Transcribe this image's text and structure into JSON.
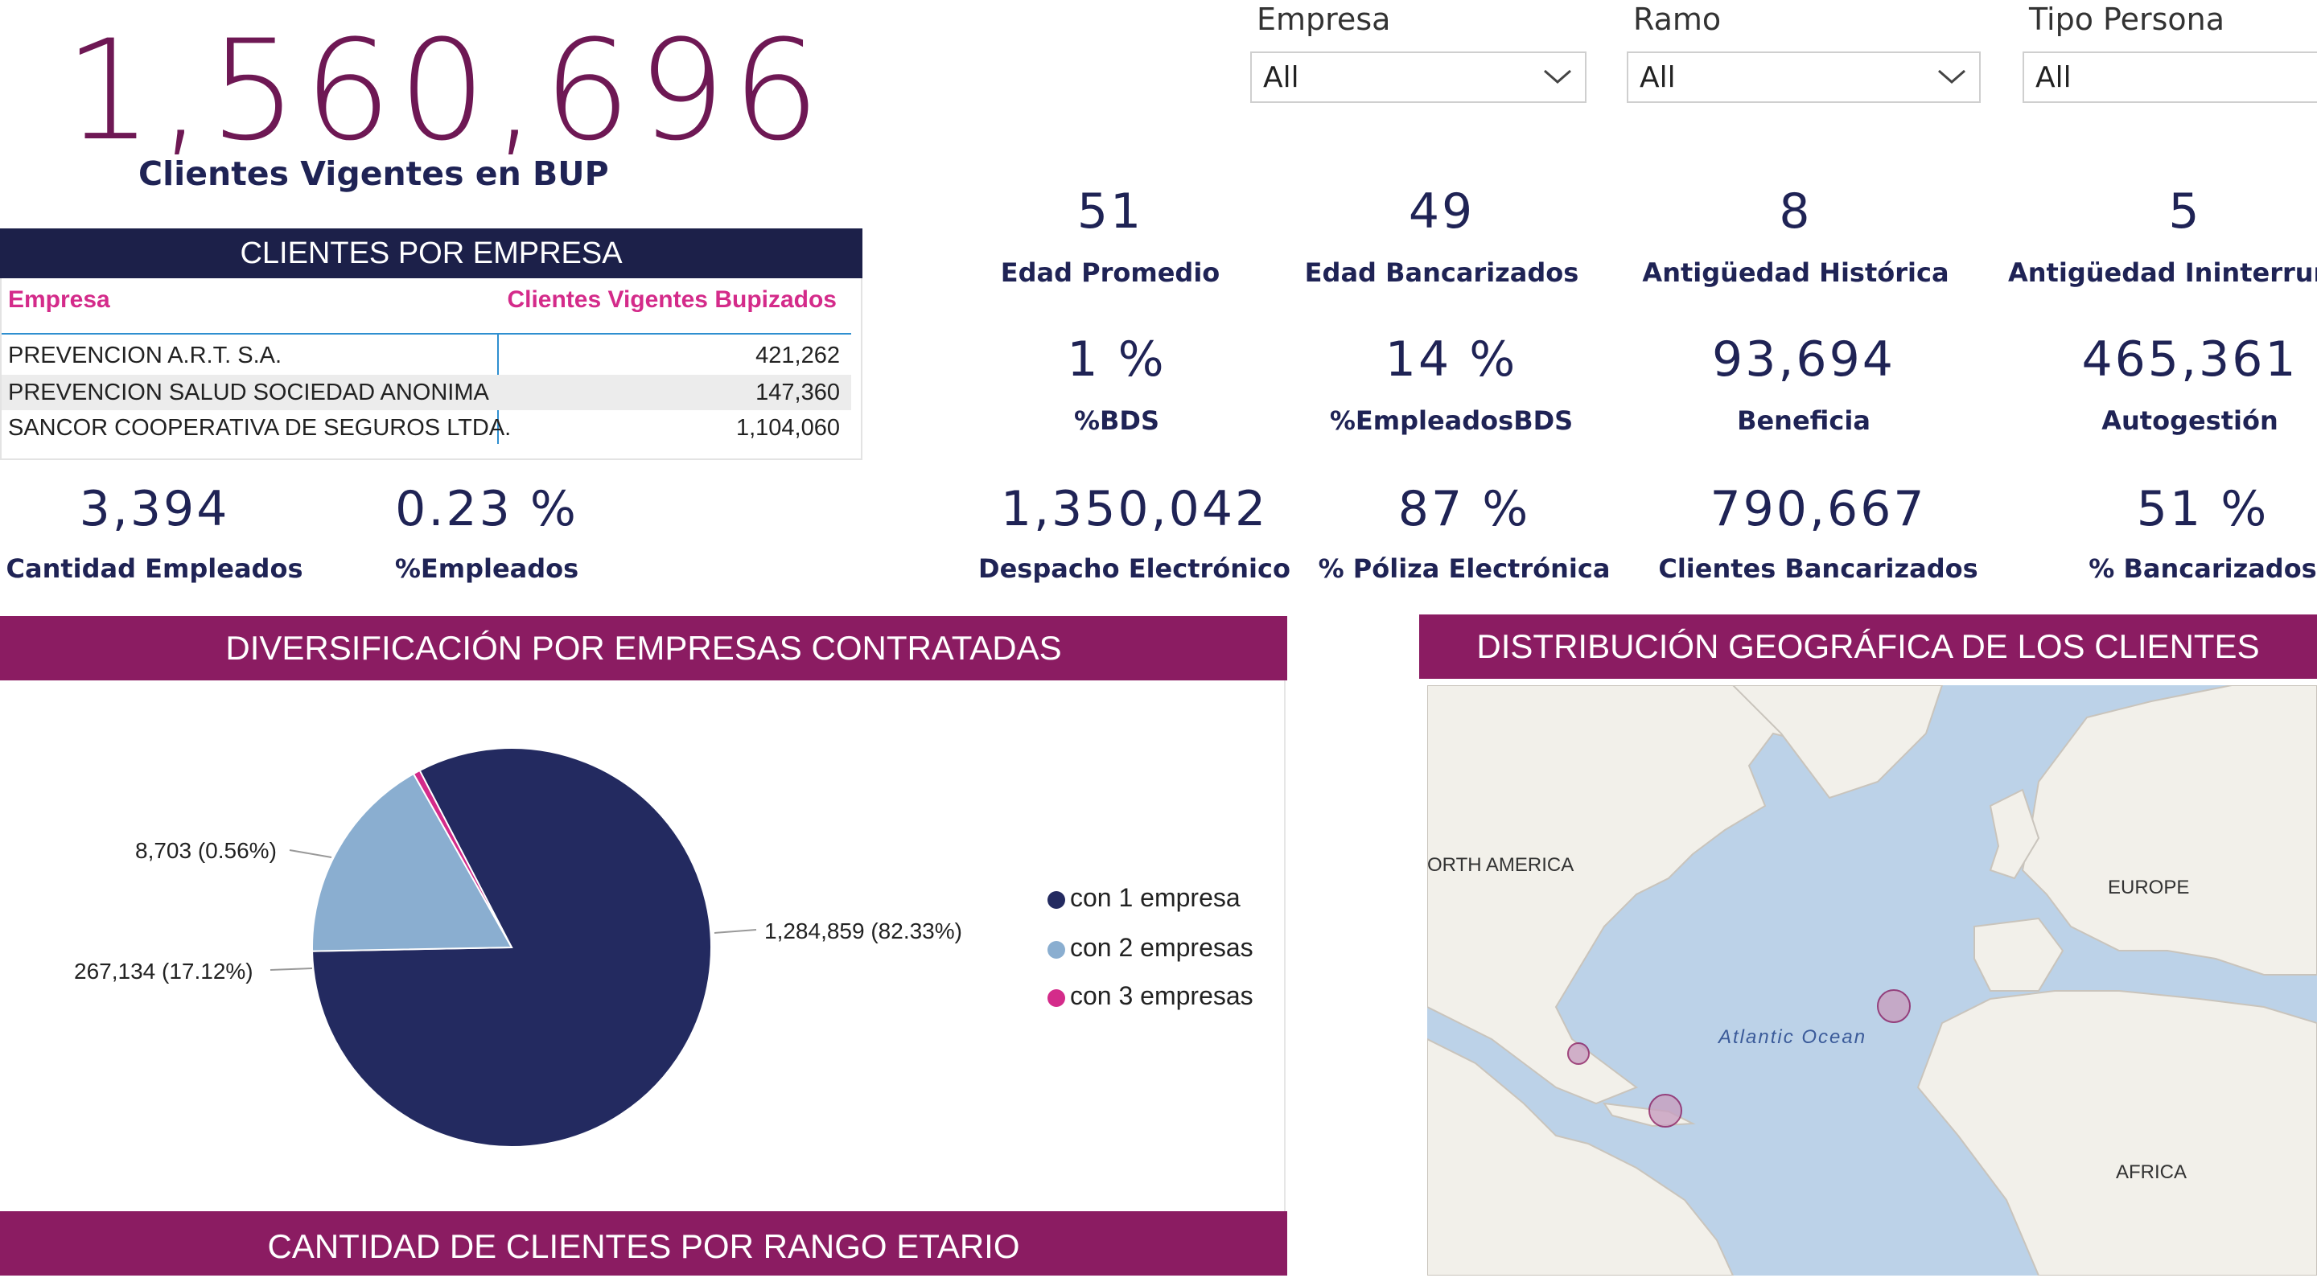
{
  "header": {
    "total_clients": "1,560,696",
    "total_label": "Clientes Vigentes en BUP"
  },
  "filters": [
    {
      "label": "Empresa",
      "value": "All"
    },
    {
      "label": "Ramo",
      "value": "All"
    },
    {
      "label": "Tipo Persona",
      "value": "All"
    }
  ],
  "clients_table": {
    "title": "CLIENTES POR EMPRESA",
    "col_company": "Empresa",
    "col_clients": "Clientes Vigentes Bupizados",
    "rows": [
      {
        "company": "PREVENCION A.R.T. S.A.",
        "clients": "421,262"
      },
      {
        "company": "PREVENCION SALUD SOCIEDAD ANONIMA",
        "clients": "147,360"
      },
      {
        "company": "SANCOR COOPERATIVA DE SEGUROS LTDA.",
        "clients": "1,104,060"
      }
    ]
  },
  "kpis_left": [
    {
      "value": "3,394",
      "label": "Cantidad Empleados"
    },
    {
      "value": "0.23 %",
      "label": "%Empleados"
    }
  ],
  "kpis": [
    {
      "value": "51",
      "label": "Edad Promedio"
    },
    {
      "value": "49",
      "label": "Edad Bancarizados"
    },
    {
      "value": "8",
      "label": "Antigüedad Histórica"
    },
    {
      "value": "5",
      "label": "Antigüedad Ininterrump"
    },
    {
      "value": "1 %",
      "label": "%BDS"
    },
    {
      "value": "14 %",
      "label": "%EmpleadosBDS"
    },
    {
      "value": "93,694",
      "label": "Beneficia"
    },
    {
      "value": "465,361",
      "label": "Autogestión"
    },
    {
      "value": "1,350,042",
      "label": "Despacho Electrónico"
    },
    {
      "value": "87 %",
      "label": "% Póliza Electrónica"
    },
    {
      "value": "790,667",
      "label": "Clientes Bancarizados"
    },
    {
      "value": "51 %",
      "label": "% Bancarizados"
    }
  ],
  "pie_section": {
    "title": "DIVERSIFICACIÓN POR EMPRESAS CONTRATADAS"
  },
  "map_section": {
    "title": "DISTRIBUCIÓN GEOGRÁFICA DE LOS CLIENTES",
    "labels": {
      "north_america": "ORTH AMERICA",
      "europe": "EUROPE",
      "atlantic": "Atlantic Ocean",
      "africa": "AFRICA"
    }
  },
  "bottom_section": {
    "title": "CANTIDAD DE CLIENTES POR RANGO ETARIO"
  },
  "chart_data": {
    "type": "pie",
    "title": "DIVERSIFICACIÓN POR EMPRESAS CONTRATADAS",
    "slices": [
      {
        "name": "con 1 empresa",
        "value": 1284859,
        "label": "1,284,859 (82.33%)",
        "color": "#232a60"
      },
      {
        "name": "con 2 empresas",
        "value": 267134,
        "label": "267,134 (17.12%)",
        "color": "#8aaed0"
      },
      {
        "name": "con 3 empresas",
        "value": 8703,
        "label": "8,703 (0.56%)",
        "color": "#d42b8a"
      }
    ],
    "legend_placement": "right"
  }
}
